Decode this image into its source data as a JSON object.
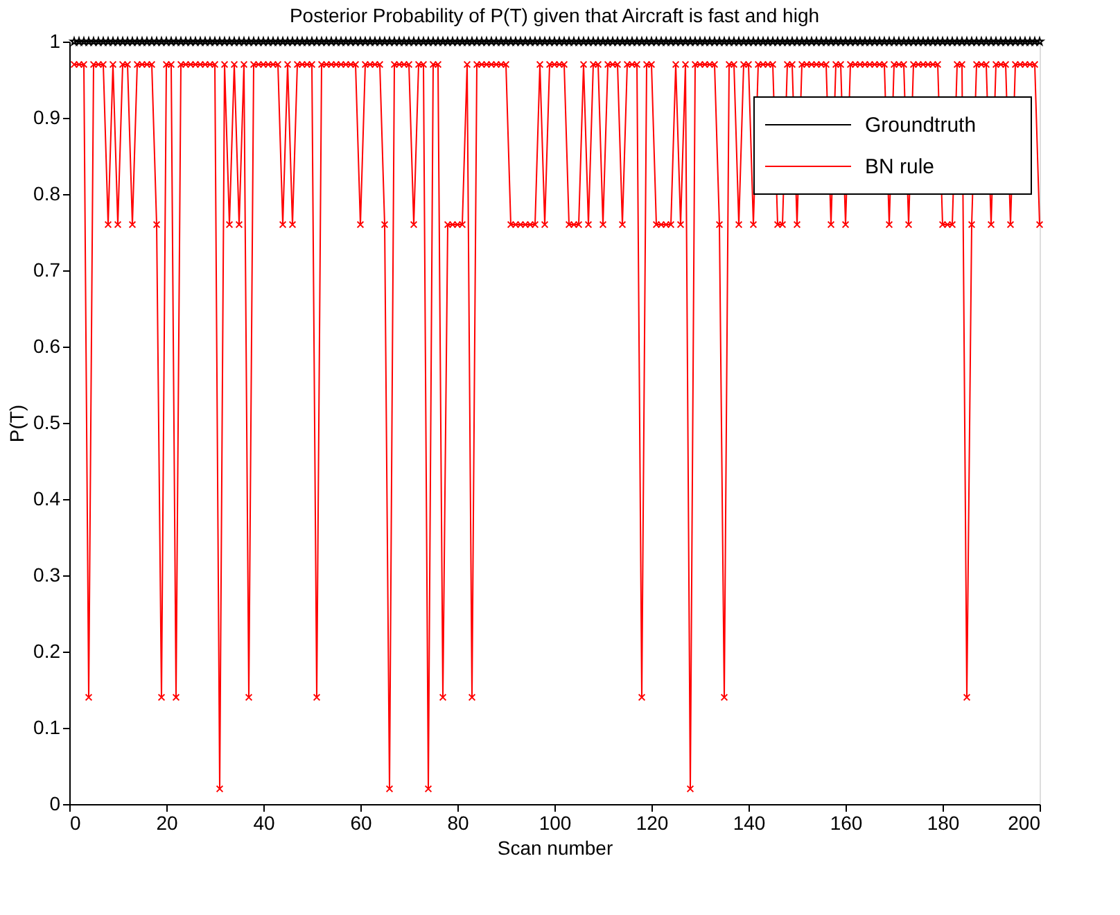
{
  "chart_data": {
    "type": "line",
    "title": "Posterior Probability of P(T) given that Aircraft is fast and high",
    "xlabel": "Scan number",
    "ylabel": "P(T)",
    "x": [
      1,
      2,
      3,
      4,
      5,
      6,
      7,
      8,
      9,
      10,
      11,
      12,
      13,
      14,
      15,
      16,
      17,
      18,
      19,
      20,
      21,
      22,
      23,
      24,
      25,
      26,
      27,
      28,
      29,
      30,
      31,
      32,
      33,
      34,
      35,
      36,
      37,
      38,
      39,
      40,
      41,
      42,
      43,
      44,
      45,
      46,
      47,
      48,
      49,
      50,
      51,
      52,
      53,
      54,
      55,
      56,
      57,
      58,
      59,
      60,
      61,
      62,
      63,
      64,
      65,
      66,
      67,
      68,
      69,
      70,
      71,
      72,
      73,
      74,
      75,
      76,
      77,
      78,
      79,
      80,
      81,
      82,
      83,
      84,
      85,
      86,
      87,
      88,
      89,
      90,
      91,
      92,
      93,
      94,
      95,
      96,
      97,
      98,
      99,
      100,
      101,
      102,
      103,
      104,
      105,
      106,
      107,
      108,
      109,
      110,
      111,
      112,
      113,
      114,
      115,
      116,
      117,
      118,
      119,
      120,
      121,
      122,
      123,
      124,
      125,
      126,
      127,
      128,
      129,
      130,
      131,
      132,
      133,
      134,
      135,
      136,
      137,
      138,
      139,
      140,
      141,
      142,
      143,
      144,
      145,
      146,
      147,
      148,
      149,
      150,
      151,
      152,
      153,
      154,
      155,
      156,
      157,
      158,
      159,
      160,
      161,
      162,
      163,
      164,
      165,
      166,
      167,
      168,
      169,
      170,
      171,
      172,
      173,
      174,
      175,
      176,
      177,
      178,
      179,
      180,
      181,
      182,
      183,
      184,
      185,
      186,
      187,
      188,
      189,
      190,
      191,
      192,
      193,
      194,
      195,
      196,
      197,
      198,
      199,
      200
    ],
    "xlim": [
      0,
      200
    ],
    "xticks": [
      0,
      20,
      40,
      60,
      80,
      100,
      120,
      140,
      160,
      180,
      200
    ],
    "ylim": [
      0,
      1
    ],
    "yticks": [
      0,
      0.1,
      0.2,
      0.3,
      0.4,
      0.5,
      0.6,
      0.7,
      0.8,
      0.9,
      1
    ],
    "grid": false,
    "legend": "top right",
    "line_style": "solid",
    "series": [
      {
        "name": "Groundtruth",
        "color": "#000000",
        "marker": "star",
        "values": [
          1,
          1,
          1,
          1,
          1,
          1,
          1,
          1,
          1,
          1,
          1,
          1,
          1,
          1,
          1,
          1,
          1,
          1,
          1,
          1,
          1,
          1,
          1,
          1,
          1,
          1,
          1,
          1,
          1,
          1,
          1,
          1,
          1,
          1,
          1,
          1,
          1,
          1,
          1,
          1,
          1,
          1,
          1,
          1,
          1,
          1,
          1,
          1,
          1,
          1,
          1,
          1,
          1,
          1,
          1,
          1,
          1,
          1,
          1,
          1,
          1,
          1,
          1,
          1,
          1,
          1,
          1,
          1,
          1,
          1,
          1,
          1,
          1,
          1,
          1,
          1,
          1,
          1,
          1,
          1,
          1,
          1,
          1,
          1,
          1,
          1,
          1,
          1,
          1,
          1,
          1,
          1,
          1,
          1,
          1,
          1,
          1,
          1,
          1,
          1,
          1,
          1,
          1,
          1,
          1,
          1,
          1,
          1,
          1,
          1,
          1,
          1,
          1,
          1,
          1,
          1,
          1,
          1,
          1,
          1,
          1,
          1,
          1,
          1,
          1,
          1,
          1,
          1,
          1,
          1,
          1,
          1,
          1,
          1,
          1,
          1,
          1,
          1,
          1,
          1,
          1,
          1,
          1,
          1,
          1,
          1,
          1,
          1,
          1,
          1,
          1,
          1,
          1,
          1,
          1,
          1,
          1,
          1,
          1,
          1,
          1,
          1,
          1,
          1,
          1,
          1,
          1,
          1,
          1,
          1,
          1,
          1,
          1,
          1,
          1,
          1,
          1,
          1,
          1,
          1,
          1,
          1,
          1,
          1,
          1,
          1,
          1,
          1,
          1,
          1,
          1,
          1,
          1,
          1,
          1,
          1,
          1,
          1,
          1,
          1
        ]
      },
      {
        "name": "BN rule",
        "color": "#ff0000",
        "marker": "cross",
        "values": [
          0.97,
          0.97,
          0.97,
          0.14,
          0.97,
          0.97,
          0.97,
          0.76,
          0.97,
          0.76,
          0.97,
          0.97,
          0.76,
          0.97,
          0.97,
          0.97,
          0.97,
          0.76,
          0.14,
          0.97,
          0.97,
          0.14,
          0.97,
          0.97,
          0.97,
          0.97,
          0.97,
          0.97,
          0.97,
          0.97,
          0.02,
          0.97,
          0.76,
          0.97,
          0.76,
          0.97,
          0.14,
          0.97,
          0.97,
          0.97,
          0.97,
          0.97,
          0.97,
          0.76,
          0.97,
          0.76,
          0.97,
          0.97,
          0.97,
          0.97,
          0.14,
          0.97,
          0.97,
          0.97,
          0.97,
          0.97,
          0.97,
          0.97,
          0.97,
          0.76,
          0.97,
          0.97,
          0.97,
          0.97,
          0.76,
          0.02,
          0.97,
          0.97,
          0.97,
          0.97,
          0.76,
          0.97,
          0.97,
          0.02,
          0.97,
          0.97,
          0.14,
          0.76,
          0.76,
          0.76,
          0.76,
          0.97,
          0.14,
          0.97,
          0.97,
          0.97,
          0.97,
          0.97,
          0.97,
          0.97,
          0.76,
          0.76,
          0.76,
          0.76,
          0.76,
          0.76,
          0.97,
          0.76,
          0.97,
          0.97,
          0.97,
          0.97,
          0.76,
          0.76,
          0.76,
          0.97,
          0.76,
          0.97,
          0.97,
          0.76,
          0.97,
          0.97,
          0.97,
          0.76,
          0.97,
          0.97,
          0.97,
          0.14,
          0.97,
          0.97,
          0.76,
          0.76,
          0.76,
          0.76,
          0.97,
          0.76,
          0.97,
          0.02,
          0.97,
          0.97,
          0.97,
          0.97,
          0.97,
          0.76,
          0.14,
          0.97,
          0.97,
          0.76,
          0.97,
          0.97,
          0.76,
          0.97,
          0.97,
          0.97,
          0.97,
          0.76,
          0.76,
          0.97,
          0.97,
          0.76,
          0.97,
          0.97,
          0.97,
          0.97,
          0.97,
          0.97,
          0.76,
          0.97,
          0.97,
          0.76,
          0.97,
          0.97,
          0.97,
          0.97,
          0.97,
          0.97,
          0.97,
          0.97,
          0.76,
          0.97,
          0.97,
          0.97,
          0.76,
          0.97,
          0.97,
          0.97,
          0.97,
          0.97,
          0.97,
          0.76,
          0.76,
          0.76,
          0.97,
          0.97,
          0.14,
          0.76,
          0.97,
          0.97,
          0.97,
          0.76,
          0.97,
          0.97,
          0.97,
          0.76,
          0.97,
          0.97,
          0.97,
          0.97,
          0.97,
          0.76
        ]
      }
    ]
  }
}
